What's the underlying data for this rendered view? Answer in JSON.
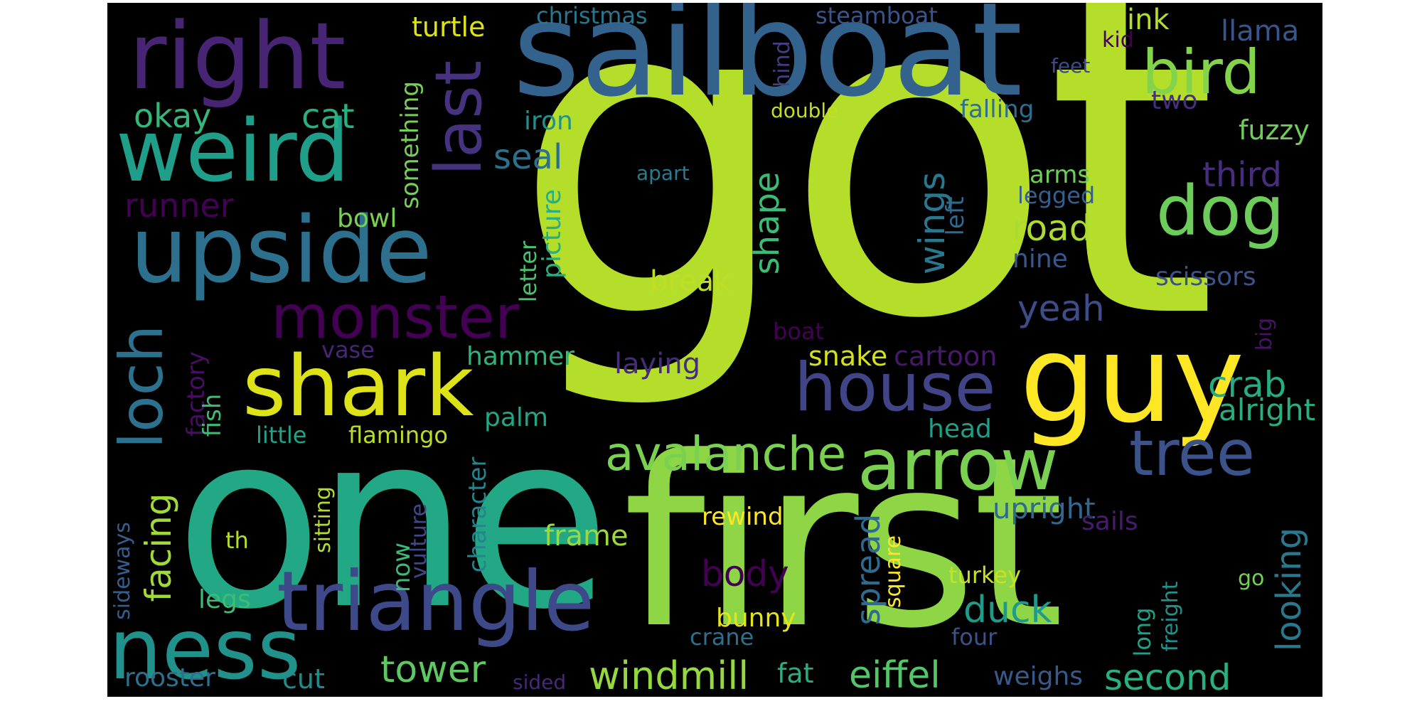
{
  "cloud": {
    "background": "#000000",
    "page_background": "#ffffff",
    "colormap": "viridis",
    "words": [
      {
        "text": "got",
        "color": "#b5de2b"
      },
      {
        "text": "first",
        "color": "#8ed645"
      },
      {
        "text": "one",
        "color": "#22a884"
      },
      {
        "text": "sailboat",
        "color": "#33638d"
      },
      {
        "text": "right",
        "color": "#482475"
      },
      {
        "text": "weird",
        "color": "#1f9e89"
      },
      {
        "text": "upside",
        "color": "#2d708e"
      },
      {
        "text": "last",
        "color": "#46327e"
      },
      {
        "text": "triangle",
        "color": "#3e4989"
      },
      {
        "text": "ness",
        "color": "#21918c"
      },
      {
        "text": "loch",
        "color": "#2c728e"
      },
      {
        "text": "guy",
        "color": "#fde725"
      },
      {
        "text": "shark",
        "color": "#dde318"
      },
      {
        "text": "house",
        "color": "#414487"
      },
      {
        "text": "arrow",
        "color": "#7ad151"
      },
      {
        "text": "tree",
        "color": "#3b528b"
      },
      {
        "text": "dog",
        "color": "#6ccd5a"
      },
      {
        "text": "bird",
        "color": "#84d44b"
      },
      {
        "text": "monster",
        "color": "#440154"
      },
      {
        "text": "avalanche",
        "color": "#7ad151"
      },
      {
        "text": "windmill",
        "color": "#95d840"
      },
      {
        "text": "tower",
        "color": "#5ec962"
      },
      {
        "text": "eiffel",
        "color": "#54c568"
      },
      {
        "text": "second",
        "color": "#2ab07f"
      },
      {
        "text": "facing",
        "color": "#a0da39"
      },
      {
        "text": "duck",
        "color": "#1e9b8a"
      },
      {
        "text": "crab",
        "color": "#25ac82"
      },
      {
        "text": "road",
        "color": "#addc30"
      },
      {
        "text": "looking",
        "color": "#2a788e"
      },
      {
        "text": "shape",
        "color": "#3bbb75"
      },
      {
        "text": "wings",
        "color": "#2a788e"
      },
      {
        "text": "spread",
        "color": "#306a8e"
      },
      {
        "text": "body",
        "color": "#440154"
      },
      {
        "text": "yeah",
        "color": "#3e4c8a"
      },
      {
        "text": "cat",
        "color": "#2ab07f"
      },
      {
        "text": "okay",
        "color": "#35b779"
      },
      {
        "text": "seal",
        "color": "#2d708e"
      },
      {
        "text": "third",
        "color": "#472d7b"
      },
      {
        "text": "runner",
        "color": "#440154"
      },
      {
        "text": "alright",
        "color": "#28ae80"
      },
      {
        "text": "christmas",
        "color": "#2a768e"
      },
      {
        "text": "steamboat",
        "color": "#3a548c"
      },
      {
        "text": "think",
        "color": "#b5de2b"
      },
      {
        "text": "llama",
        "color": "#39568c"
      },
      {
        "text": "turtle",
        "color": "#dde318"
      },
      {
        "text": "kid",
        "color": "#440154"
      },
      {
        "text": "feet",
        "color": "#3e4989"
      },
      {
        "text": "hind",
        "color": "#433e85"
      },
      {
        "text": "falling",
        "color": "#2e6e8e"
      },
      {
        "text": "two",
        "color": "#472f7d"
      },
      {
        "text": "fuzzy",
        "color": "#6ece58"
      },
      {
        "text": "iron",
        "color": "#21918c"
      },
      {
        "text": "double",
        "color": "#c2df23"
      },
      {
        "text": "something",
        "color": "#75d054"
      },
      {
        "text": "apart",
        "color": "#297b8e"
      },
      {
        "text": "arms",
        "color": "#6ece58"
      },
      {
        "text": "legged",
        "color": "#355f8d"
      },
      {
        "text": "bowl",
        "color": "#7ad151"
      },
      {
        "text": "picture",
        "color": "#29af7f"
      },
      {
        "text": "letter",
        "color": "#4ac16d"
      },
      {
        "text": "left",
        "color": "#31688e"
      },
      {
        "text": "nine",
        "color": "#38588c"
      },
      {
        "text": "scissors",
        "color": "#3b528b"
      },
      {
        "text": "break",
        "color": "#bddf26"
      },
      {
        "text": "boat",
        "color": "#440154"
      },
      {
        "text": "big",
        "color": "#471365"
      },
      {
        "text": "vase",
        "color": "#482576"
      },
      {
        "text": "hammer",
        "color": "#2fb47c"
      },
      {
        "text": "laying",
        "color": "#472c7a"
      },
      {
        "text": "snake",
        "color": "#d2e21b"
      },
      {
        "text": "cartoon",
        "color": "#48186a"
      },
      {
        "text": "factory",
        "color": "#470e61"
      },
      {
        "text": "fish",
        "color": "#3dbc74"
      },
      {
        "text": "palm",
        "color": "#22a785"
      },
      {
        "text": "head",
        "color": "#1f9f88"
      },
      {
        "text": "little",
        "color": "#20a386"
      },
      {
        "text": "flamingo",
        "color": "#b8de29"
      },
      {
        "text": "character",
        "color": "#25858e"
      },
      {
        "text": "frame",
        "color": "#9bd93c"
      },
      {
        "text": "upright",
        "color": "#30698e"
      },
      {
        "text": "sails",
        "color": "#481b6d"
      },
      {
        "text": "rewind",
        "color": "#fde725"
      },
      {
        "text": "th",
        "color": "#b5de2b"
      },
      {
        "text": "sitting",
        "color": "#b0dd2f"
      },
      {
        "text": "sideways",
        "color": "#355e8d"
      },
      {
        "text": "now",
        "color": "#3bbb75"
      },
      {
        "text": "vulture",
        "color": "#3f4889"
      },
      {
        "text": "square",
        "color": "#fde725"
      },
      {
        "text": "turkey",
        "color": "#cae11f"
      },
      {
        "text": "go",
        "color": "#75d054"
      },
      {
        "text": "freight",
        "color": "#21918c"
      },
      {
        "text": "long",
        "color": "#1fa187"
      },
      {
        "text": "legs",
        "color": "#3dbc74"
      },
      {
        "text": "bunny",
        "color": "#e5e419"
      },
      {
        "text": "crane",
        "color": "#2d708e"
      },
      {
        "text": "four",
        "color": "#3b528b"
      },
      {
        "text": "rooster",
        "color": "#2e6f8e"
      },
      {
        "text": "cut",
        "color": "#228c8d"
      },
      {
        "text": "fat",
        "color": "#29af7f"
      },
      {
        "text": "weighs",
        "color": "#38598c"
      },
      {
        "text": "sided",
        "color": "#482878"
      }
    ]
  }
}
